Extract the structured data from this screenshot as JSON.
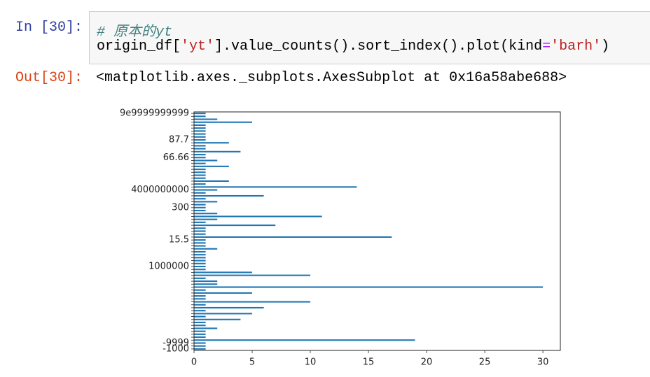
{
  "cell": {
    "in_prompt": "In [30]:",
    "code_comment": "# 原本的yt",
    "code_tokens": [
      "origin_df[",
      "'yt'",
      "].value_counts().sort_index().plot(kind",
      "=",
      "'barh'",
      ")"
    ],
    "out_prompt": "Out[30]:",
    "output_text": "<matplotlib.axes._subplots.AxesSubplot at 0x16a58abe688>"
  },
  "chart_data": {
    "type": "barh",
    "color": "#1f77b4",
    "categories": [
      "-1000",
      null,
      "-9999",
      null,
      null,
      null,
      null,
      null,
      null,
      null,
      null,
      null,
      null,
      null,
      null,
      null,
      null,
      null,
      null,
      null,
      null,
      null,
      null,
      null,
      null,
      null,
      null,
      null,
      "1000000",
      null,
      null,
      null,
      null,
      null,
      null,
      null,
      null,
      "15.5",
      null,
      null,
      null,
      null,
      null,
      null,
      null,
      null,
      null,
      null,
      "300",
      null,
      null,
      null,
      null,
      null,
      "4000000000",
      null,
      null,
      null,
      null,
      null,
      null,
      null,
      null,
      null,
      null,
      "66.66",
      null,
      null,
      null,
      null,
      null,
      "87.7",
      null,
      null,
      null,
      null,
      null,
      null,
      null,
      null,
      "9e9999999999"
    ],
    "values": [
      1,
      1,
      1,
      19,
      1,
      1,
      1,
      2,
      1,
      1,
      4,
      1,
      5,
      1,
      6,
      1,
      10,
      1,
      1,
      5,
      1,
      30,
      2,
      2,
      1,
      10,
      5,
      1,
      1,
      1,
      1,
      1,
      1,
      1,
      2,
      1,
      1,
      1,
      17,
      1,
      1,
      1,
      7,
      1,
      2,
      11,
      2,
      1,
      1,
      1,
      2,
      1,
      6,
      1,
      2,
      14,
      1,
      3,
      1,
      1,
      1,
      1,
      3,
      1,
      2,
      1,
      1,
      4,
      1,
      1,
      3,
      1,
      1,
      1,
      1,
      1,
      1,
      5,
      2,
      1,
      1
    ],
    "xlim": [
      0,
      31.5
    ],
    "xticks": [
      0,
      5,
      10,
      15,
      20,
      25,
      30
    ]
  }
}
